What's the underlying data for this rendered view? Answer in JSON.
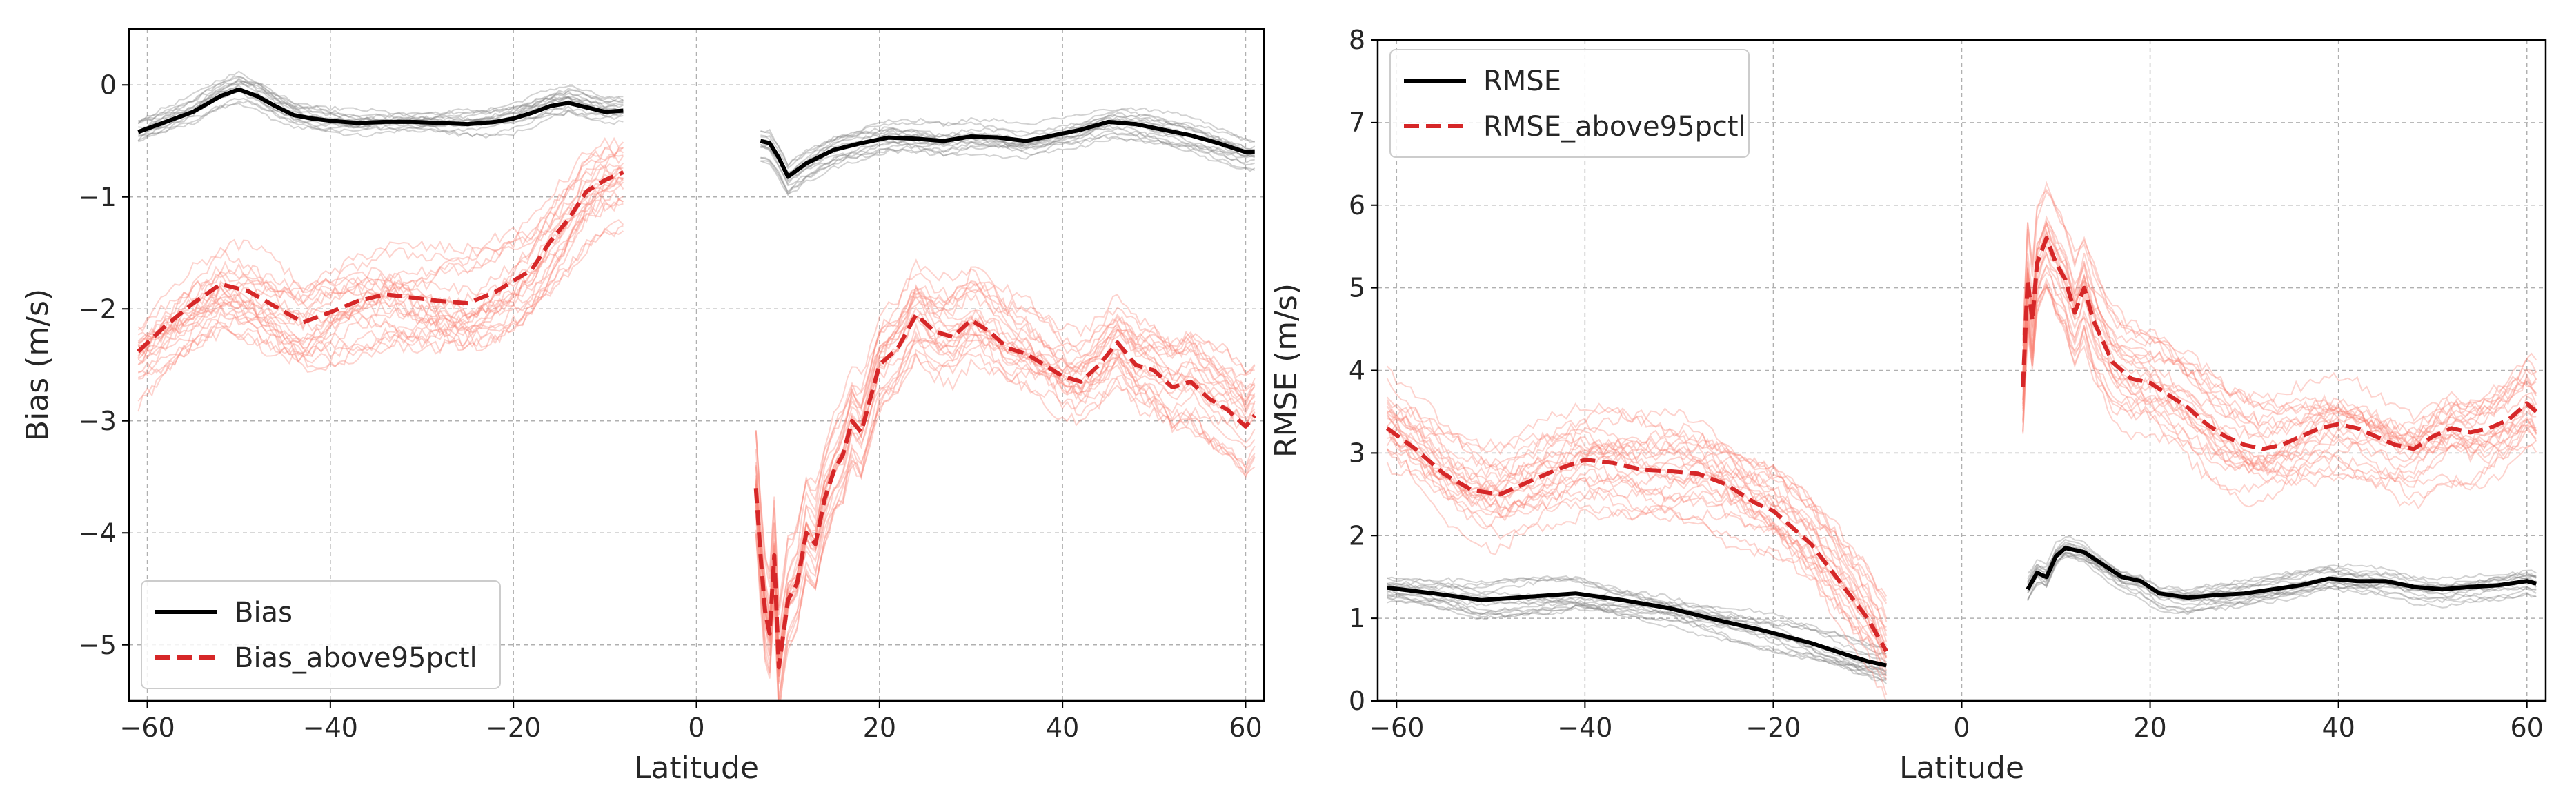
{
  "chart_data": [
    {
      "type": "line",
      "xlabel": "Latitude",
      "ylabel": "Bias (m/s)",
      "xlim": [
        -62,
        62
      ],
      "ylim": [
        -5.5,
        0.5
      ],
      "xticks": [
        -60,
        -40,
        -20,
        0,
        20,
        40,
        60
      ],
      "yticks": [
        0,
        -1,
        -2,
        -3,
        -4,
        -5
      ],
      "grid": true,
      "legend_position": "lower-left",
      "series": [
        {
          "name": "Bias",
          "color": "#000000",
          "style": "solid",
          "x": [
            -61,
            -58,
            -55,
            -52,
            -50,
            -48,
            -46,
            -44,
            -42,
            -40,
            -37,
            -34,
            -31,
            -28,
            -25,
            -22,
            -20,
            -18,
            -16,
            -14,
            -12,
            -10,
            -8
          ],
          "y": [
            -0.42,
            -0.33,
            -0.24,
            -0.1,
            -0.04,
            -0.1,
            -0.19,
            -0.27,
            -0.3,
            -0.32,
            -0.34,
            -0.33,
            -0.33,
            -0.34,
            -0.35,
            -0.33,
            -0.3,
            -0.25,
            -0.19,
            -0.16,
            -0.2,
            -0.24,
            -0.23
          ]
        },
        {
          "name": "Bias_above95pctl",
          "color": "#d62728",
          "style": "dashed",
          "x": [
            -61,
            -58,
            -55,
            -52,
            -49,
            -46,
            -43,
            -40,
            -37,
            -34,
            -31,
            -28,
            -25,
            -22,
            -20,
            -18,
            -16,
            -14,
            -12,
            -10,
            -8
          ],
          "y": [
            -2.38,
            -2.15,
            -1.95,
            -1.78,
            -1.84,
            -1.98,
            -2.12,
            -2.03,
            -1.93,
            -1.87,
            -1.9,
            -1.93,
            -1.95,
            -1.85,
            -1.75,
            -1.65,
            -1.4,
            -1.2,
            -0.95,
            -0.85,
            -0.78
          ]
        },
        {
          "name": "Bias",
          "color": "#000000",
          "style": "solid",
          "x": [
            7,
            8,
            9,
            10,
            12,
            15,
            18,
            21,
            24,
            27,
            30,
            33,
            36,
            39,
            42,
            45,
            48,
            51,
            54,
            57,
            60,
            61
          ],
          "y": [
            -0.5,
            -0.52,
            -0.65,
            -0.82,
            -0.7,
            -0.58,
            -0.52,
            -0.47,
            -0.48,
            -0.5,
            -0.46,
            -0.47,
            -0.5,
            -0.45,
            -0.4,
            -0.33,
            -0.35,
            -0.4,
            -0.45,
            -0.52,
            -0.6,
            -0.6
          ]
        },
        {
          "name": "Bias_above95pctl",
          "color": "#d62728",
          "style": "dashed",
          "x": [
            6.5,
            7,
            7.5,
            8,
            8.5,
            9,
            10,
            11,
            12,
            13,
            14,
            15,
            16,
            17,
            18,
            20,
            22,
            24,
            26,
            28,
            30,
            32,
            34,
            36,
            38,
            40,
            42,
            44,
            46,
            48,
            50,
            52,
            54,
            56,
            58,
            60,
            61
          ],
          "y": [
            -3.6,
            -4.2,
            -4.7,
            -4.9,
            -4.2,
            -5.2,
            -4.6,
            -4.45,
            -4.0,
            -4.1,
            -3.7,
            -3.45,
            -3.3,
            -3.0,
            -3.1,
            -2.5,
            -2.35,
            -2.05,
            -2.2,
            -2.25,
            -2.1,
            -2.2,
            -2.35,
            -2.4,
            -2.5,
            -2.6,
            -2.65,
            -2.5,
            -2.3,
            -2.5,
            -2.55,
            -2.7,
            -2.65,
            -2.8,
            -2.9,
            -3.05,
            -2.95
          ]
        }
      ]
    },
    {
      "type": "line",
      "xlabel": "Latitude",
      "ylabel": "RMSE (m/s)",
      "xlim": [
        -62,
        62
      ],
      "ylim": [
        0,
        8
      ],
      "xticks": [
        -60,
        -40,
        -20,
        0,
        20,
        40,
        60
      ],
      "yticks": [
        0,
        1,
        2,
        3,
        4,
        5,
        6,
        7,
        8
      ],
      "grid": true,
      "legend_position": "upper-left",
      "series": [
        {
          "name": "RMSE",
          "color": "#000000",
          "style": "solid",
          "x": [
            -61,
            -56,
            -51,
            -46,
            -41,
            -36,
            -31,
            -26,
            -21,
            -16,
            -12,
            -10,
            -8
          ],
          "y": [
            1.37,
            1.3,
            1.22,
            1.26,
            1.3,
            1.22,
            1.12,
            0.98,
            0.85,
            0.7,
            0.55,
            0.48,
            0.43
          ]
        },
        {
          "name": "RMSE_above95pctl",
          "color": "#d62728",
          "style": "dashed",
          "x": [
            -61,
            -58,
            -55,
            -52,
            -49,
            -46,
            -43,
            -40,
            -37,
            -34,
            -31,
            -28,
            -25,
            -22,
            -20,
            -18,
            -16,
            -14,
            -12,
            -10,
            -8
          ],
          "y": [
            3.3,
            3.05,
            2.75,
            2.55,
            2.5,
            2.65,
            2.8,
            2.92,
            2.88,
            2.8,
            2.78,
            2.75,
            2.62,
            2.4,
            2.3,
            2.1,
            1.9,
            1.6,
            1.3,
            1.0,
            0.6
          ]
        },
        {
          "name": "RMSE",
          "color": "#000000",
          "style": "solid",
          "x": [
            7,
            8,
            9,
            10,
            11,
            13,
            15,
            17,
            19,
            21,
            24,
            27,
            30,
            33,
            36,
            39,
            42,
            45,
            48,
            51,
            54,
            57,
            60,
            61
          ],
          "y": [
            1.35,
            1.55,
            1.5,
            1.75,
            1.85,
            1.8,
            1.65,
            1.5,
            1.45,
            1.3,
            1.25,
            1.28,
            1.3,
            1.35,
            1.4,
            1.48,
            1.45,
            1.45,
            1.38,
            1.35,
            1.38,
            1.4,
            1.45,
            1.42
          ]
        },
        {
          "name": "RMSE_above95pctl",
          "color": "#d62728",
          "style": "dashed",
          "x": [
            6.5,
            7,
            7.5,
            8,
            9,
            10,
            11,
            12,
            13,
            14,
            15,
            16,
            18,
            20,
            22,
            24,
            26,
            28,
            30,
            32,
            34,
            36,
            38,
            40,
            42,
            44,
            46,
            48,
            50,
            52,
            54,
            56,
            58,
            60,
            61
          ],
          "y": [
            3.8,
            5.1,
            4.6,
            5.3,
            5.6,
            5.3,
            5.1,
            4.7,
            5.0,
            4.6,
            4.35,
            4.1,
            3.9,
            3.85,
            3.7,
            3.55,
            3.35,
            3.2,
            3.1,
            3.05,
            3.1,
            3.2,
            3.3,
            3.35,
            3.3,
            3.2,
            3.1,
            3.05,
            3.2,
            3.3,
            3.25,
            3.3,
            3.4,
            3.6,
            3.5
          ]
        }
      ]
    }
  ]
}
